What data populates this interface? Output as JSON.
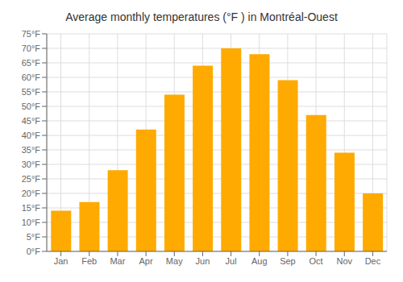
{
  "chart_data": {
    "type": "bar",
    "title": "Average monthly temperatures (°F ) in Montréal-Ouest",
    "categories": [
      "Jan",
      "Feb",
      "Mar",
      "Apr",
      "May",
      "Jun",
      "Jul",
      "Aug",
      "Sep",
      "Oct",
      "Nov",
      "Dec"
    ],
    "values": [
      14,
      17,
      28,
      42,
      54,
      64,
      70,
      68,
      59,
      47,
      34,
      20
    ],
    "color": "#FFAA00",
    "ylim": [
      0,
      75
    ],
    "yticks": [
      {
        "value": 0,
        "label": "0°F"
      },
      {
        "value": 5,
        "label": "5°F"
      },
      {
        "value": 10,
        "label": "10°F"
      },
      {
        "value": 15,
        "label": "15°F"
      },
      {
        "value": 20,
        "label": "20°F"
      },
      {
        "value": 25,
        "label": "25°F"
      },
      {
        "value": 30,
        "label": "30°F"
      },
      {
        "value": 35,
        "label": "35°F"
      },
      {
        "value": 40,
        "label": "40°F"
      },
      {
        "value": 45,
        "label": "45°F"
      },
      {
        "value": 50,
        "label": "50°F"
      },
      {
        "value": 55,
        "label": "55°F"
      },
      {
        "value": 60,
        "label": "60°F"
      },
      {
        "value": 65,
        "label": "65°F"
      },
      {
        "value": 70,
        "label": "70°F"
      },
      {
        "value": 75,
        "label": "75°F"
      }
    ],
    "grid": true
  }
}
